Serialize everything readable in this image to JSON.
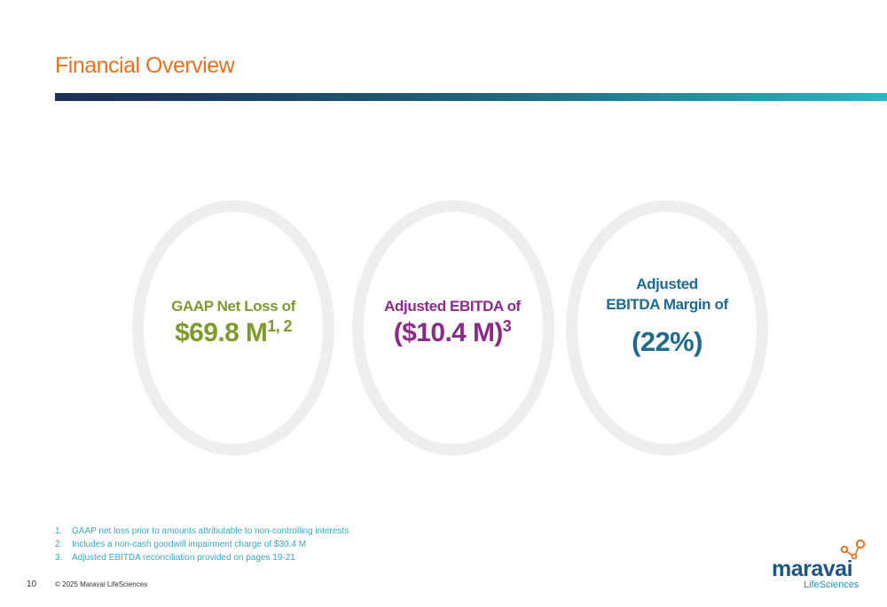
{
  "slide": {
    "title": "Financial Overview",
    "page_number": "10",
    "copyright": "© 2025 Maravai LifeSciences"
  },
  "metrics": [
    {
      "label": "GAAP Net Loss of",
      "value": "$69.8 M",
      "superscript": "1, 2",
      "color": "#7f9a2c"
    },
    {
      "label": "Adjusted EBITDA of",
      "value": "($10.4 M)",
      "superscript": "3",
      "color": "#8d2a87"
    },
    {
      "label_line1": "Adjusted",
      "label_line2": "EBITDA Margin of",
      "value": "(22%)",
      "color": "#1d6b8f"
    }
  ],
  "footnotes": [
    {
      "num": "1.",
      "text": "GAAP net loss prior to amounts attributable to non-controlling interests"
    },
    {
      "num": "2.",
      "text": "Includes a non-cash goodwill impairment charge of $30.4 M"
    },
    {
      "num": "3.",
      "text": "Adjusted EBITDA reconciliation provided on pages 19-21"
    }
  ],
  "logo": {
    "name": "maravai",
    "sub": "LifeSciences"
  },
  "colors": {
    "title": "#e8701f",
    "bar_start": "#1c2f5a",
    "bar_end": "#2bb6c6",
    "ring": "#eeeeee",
    "footnote": "#3aa6c2"
  }
}
